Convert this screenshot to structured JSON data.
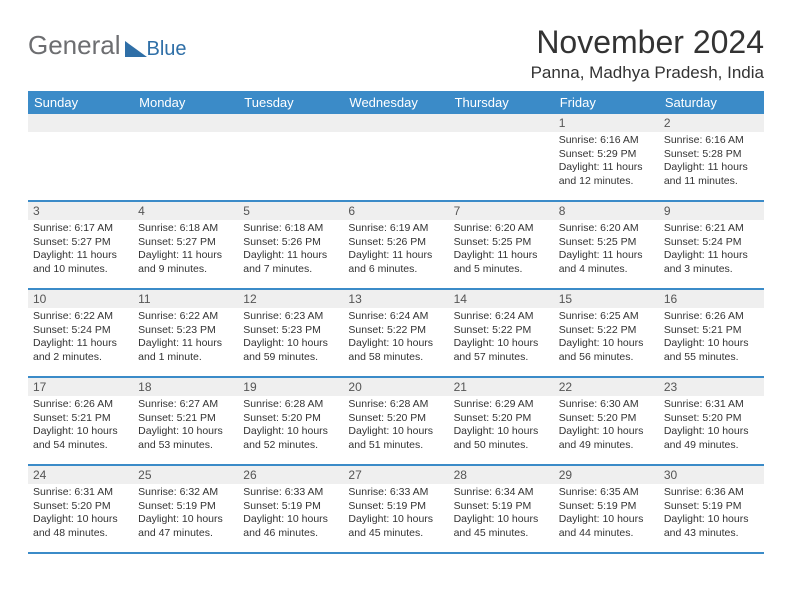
{
  "logo": {
    "text1": "General",
    "text2": "Blue"
  },
  "title": "November 2024",
  "location": "Panna, Madhya Pradesh, India",
  "weekdays": [
    "Sunday",
    "Monday",
    "Tuesday",
    "Wednesday",
    "Thursday",
    "Friday",
    "Saturday"
  ],
  "colors": {
    "header_bg": "#3b8bc8",
    "header_text": "#ffffff",
    "daynum_bg": "#efefef",
    "border": "#3b8bc8",
    "body_text": "#333333",
    "logo_gray": "#6d6e71",
    "logo_blue": "#2f6fa7"
  },
  "weeks": [
    [
      {
        "empty": true
      },
      {
        "empty": true
      },
      {
        "empty": true
      },
      {
        "empty": true
      },
      {
        "empty": true
      },
      {
        "n": "1",
        "sr": "Sunrise: 6:16 AM",
        "ss": "Sunset: 5:29 PM",
        "dl": "Daylight: 11 hours and 12 minutes."
      },
      {
        "n": "2",
        "sr": "Sunrise: 6:16 AM",
        "ss": "Sunset: 5:28 PM",
        "dl": "Daylight: 11 hours and 11 minutes."
      }
    ],
    [
      {
        "n": "3",
        "sr": "Sunrise: 6:17 AM",
        "ss": "Sunset: 5:27 PM",
        "dl": "Daylight: 11 hours and 10 minutes."
      },
      {
        "n": "4",
        "sr": "Sunrise: 6:18 AM",
        "ss": "Sunset: 5:27 PM",
        "dl": "Daylight: 11 hours and 9 minutes."
      },
      {
        "n": "5",
        "sr": "Sunrise: 6:18 AM",
        "ss": "Sunset: 5:26 PM",
        "dl": "Daylight: 11 hours and 7 minutes."
      },
      {
        "n": "6",
        "sr": "Sunrise: 6:19 AM",
        "ss": "Sunset: 5:26 PM",
        "dl": "Daylight: 11 hours and 6 minutes."
      },
      {
        "n": "7",
        "sr": "Sunrise: 6:20 AM",
        "ss": "Sunset: 5:25 PM",
        "dl": "Daylight: 11 hours and 5 minutes."
      },
      {
        "n": "8",
        "sr": "Sunrise: 6:20 AM",
        "ss": "Sunset: 5:25 PM",
        "dl": "Daylight: 11 hours and 4 minutes."
      },
      {
        "n": "9",
        "sr": "Sunrise: 6:21 AM",
        "ss": "Sunset: 5:24 PM",
        "dl": "Daylight: 11 hours and 3 minutes."
      }
    ],
    [
      {
        "n": "10",
        "sr": "Sunrise: 6:22 AM",
        "ss": "Sunset: 5:24 PM",
        "dl": "Daylight: 11 hours and 2 minutes."
      },
      {
        "n": "11",
        "sr": "Sunrise: 6:22 AM",
        "ss": "Sunset: 5:23 PM",
        "dl": "Daylight: 11 hours and 1 minute."
      },
      {
        "n": "12",
        "sr": "Sunrise: 6:23 AM",
        "ss": "Sunset: 5:23 PM",
        "dl": "Daylight: 10 hours and 59 minutes."
      },
      {
        "n": "13",
        "sr": "Sunrise: 6:24 AM",
        "ss": "Sunset: 5:22 PM",
        "dl": "Daylight: 10 hours and 58 minutes."
      },
      {
        "n": "14",
        "sr": "Sunrise: 6:24 AM",
        "ss": "Sunset: 5:22 PM",
        "dl": "Daylight: 10 hours and 57 minutes."
      },
      {
        "n": "15",
        "sr": "Sunrise: 6:25 AM",
        "ss": "Sunset: 5:22 PM",
        "dl": "Daylight: 10 hours and 56 minutes."
      },
      {
        "n": "16",
        "sr": "Sunrise: 6:26 AM",
        "ss": "Sunset: 5:21 PM",
        "dl": "Daylight: 10 hours and 55 minutes."
      }
    ],
    [
      {
        "n": "17",
        "sr": "Sunrise: 6:26 AM",
        "ss": "Sunset: 5:21 PM",
        "dl": "Daylight: 10 hours and 54 minutes."
      },
      {
        "n": "18",
        "sr": "Sunrise: 6:27 AM",
        "ss": "Sunset: 5:21 PM",
        "dl": "Daylight: 10 hours and 53 minutes."
      },
      {
        "n": "19",
        "sr": "Sunrise: 6:28 AM",
        "ss": "Sunset: 5:20 PM",
        "dl": "Daylight: 10 hours and 52 minutes."
      },
      {
        "n": "20",
        "sr": "Sunrise: 6:28 AM",
        "ss": "Sunset: 5:20 PM",
        "dl": "Daylight: 10 hours and 51 minutes."
      },
      {
        "n": "21",
        "sr": "Sunrise: 6:29 AM",
        "ss": "Sunset: 5:20 PM",
        "dl": "Daylight: 10 hours and 50 minutes."
      },
      {
        "n": "22",
        "sr": "Sunrise: 6:30 AM",
        "ss": "Sunset: 5:20 PM",
        "dl": "Daylight: 10 hours and 49 minutes."
      },
      {
        "n": "23",
        "sr": "Sunrise: 6:31 AM",
        "ss": "Sunset: 5:20 PM",
        "dl": "Daylight: 10 hours and 49 minutes."
      }
    ],
    [
      {
        "n": "24",
        "sr": "Sunrise: 6:31 AM",
        "ss": "Sunset: 5:20 PM",
        "dl": "Daylight: 10 hours and 48 minutes."
      },
      {
        "n": "25",
        "sr": "Sunrise: 6:32 AM",
        "ss": "Sunset: 5:19 PM",
        "dl": "Daylight: 10 hours and 47 minutes."
      },
      {
        "n": "26",
        "sr": "Sunrise: 6:33 AM",
        "ss": "Sunset: 5:19 PM",
        "dl": "Daylight: 10 hours and 46 minutes."
      },
      {
        "n": "27",
        "sr": "Sunrise: 6:33 AM",
        "ss": "Sunset: 5:19 PM",
        "dl": "Daylight: 10 hours and 45 minutes."
      },
      {
        "n": "28",
        "sr": "Sunrise: 6:34 AM",
        "ss": "Sunset: 5:19 PM",
        "dl": "Daylight: 10 hours and 45 minutes."
      },
      {
        "n": "29",
        "sr": "Sunrise: 6:35 AM",
        "ss": "Sunset: 5:19 PM",
        "dl": "Daylight: 10 hours and 44 minutes."
      },
      {
        "n": "30",
        "sr": "Sunrise: 6:36 AM",
        "ss": "Sunset: 5:19 PM",
        "dl": "Daylight: 10 hours and 43 minutes."
      }
    ]
  ]
}
